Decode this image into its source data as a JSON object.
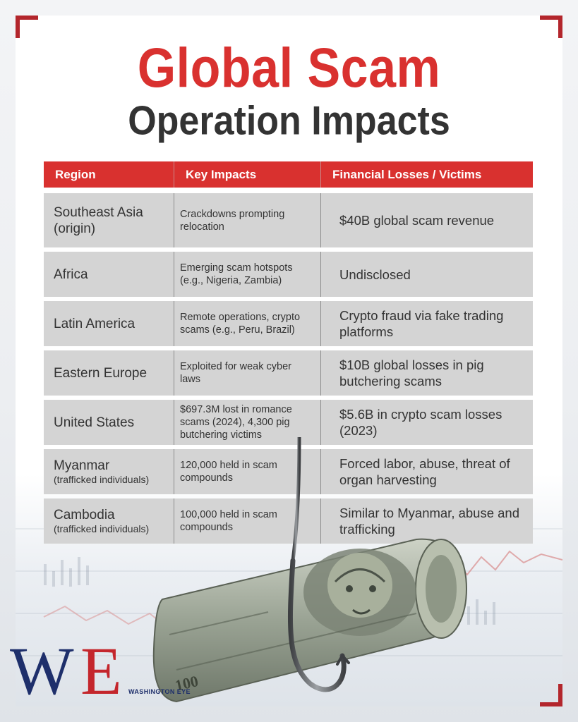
{
  "title": {
    "line1": "Global Scam",
    "line2": "Operation Impacts"
  },
  "table": {
    "headers": [
      "Region",
      "Key Impacts",
      "Financial Losses / Victims"
    ],
    "rows": [
      {
        "region": "Southeast Asia (origin)",
        "region_sub": "",
        "impact": "Crackdowns prompting relocation",
        "loss": "$40B global scam revenue"
      },
      {
        "region": "Africa",
        "region_sub": "",
        "impact": "Emerging scam hotspots (e.g., Nigeria, Zambia)",
        "loss": "Undisclosed"
      },
      {
        "region": "Latin America",
        "region_sub": "",
        "impact": "Remote operations, crypto scams (e.g., Peru, Brazil)",
        "loss": "Crypto fraud via fake trading platforms"
      },
      {
        "region": "Eastern Europe",
        "region_sub": "",
        "impact": "Exploited for weak cyber laws",
        "loss": "$10B global losses in pig butchering scams"
      },
      {
        "region": "United States",
        "region_sub": "",
        "impact": "$697.3M lost in romance scams (2024), 4,300 pig butchering victims",
        "loss": "$5.6B in crypto scam losses (2023)"
      },
      {
        "region": "Myanmar",
        "region_sub": "(trafficked individuals)",
        "impact": "120,000 held in scam compounds",
        "loss": "Forced labor, abuse, threat of organ harvesting"
      },
      {
        "region": "Cambodia",
        "region_sub": "(trafficked individuals)",
        "impact": "100,000 held in scam compounds",
        "loss": "Similar to Myanmar, abuse and trafficking"
      }
    ]
  },
  "logo": {
    "mark_w": "W",
    "mark_e": "E",
    "name": "WASHINGTON EYE"
  },
  "colors": {
    "accent_red": "#d9312f",
    "dark_text": "#333333",
    "row_bg": "#d4d4d4",
    "logo_blue": "#1e2f6b"
  },
  "icons": {
    "image": "rolled-dollar-bill-on-fish-hook"
  }
}
